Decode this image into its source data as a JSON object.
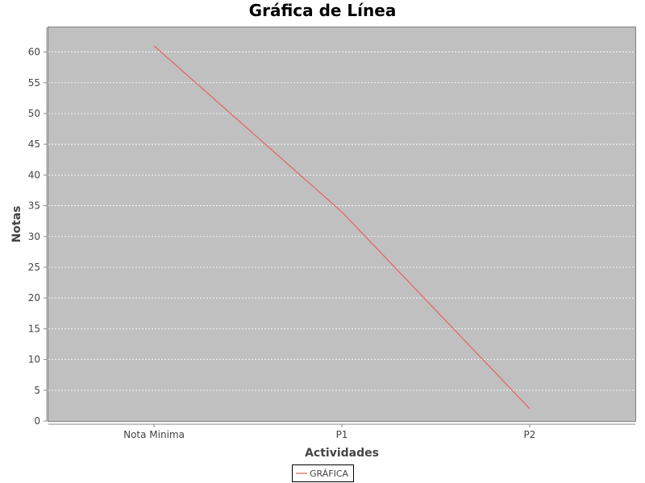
{
  "chart_data": {
    "type": "line",
    "title": "Gráfica de Línea",
    "xlabel": "Actividades",
    "ylabel": "Notas",
    "categories": [
      "Nota Minima",
      "P1",
      "P2"
    ],
    "series": [
      {
        "name": "GRÁFICA",
        "values": [
          61,
          34,
          2
        ],
        "color": "#e8605f"
      }
    ],
    "ylim": [
      0,
      64
    ],
    "yticks": [
      0,
      5,
      10,
      15,
      20,
      25,
      30,
      35,
      40,
      45,
      50,
      55,
      60
    ],
    "grid": true,
    "plot_background": "#c0c0c0",
    "gridline_color": "#ffffff",
    "legend_position": "bottom-center"
  }
}
